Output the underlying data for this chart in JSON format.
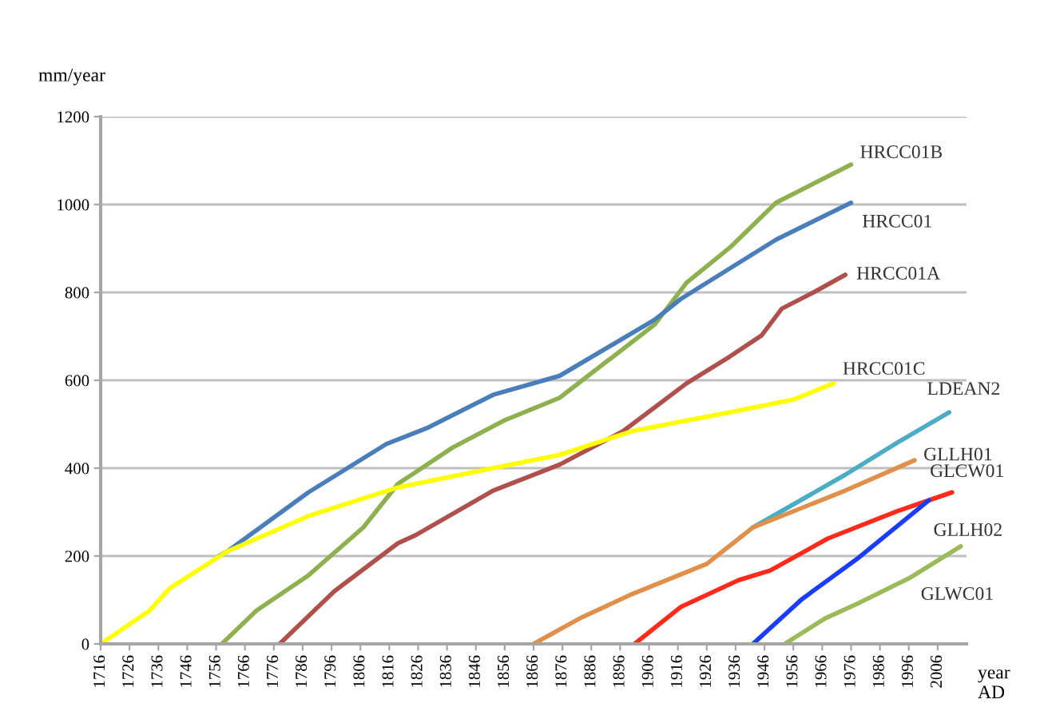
{
  "chart_data": {
    "type": "line",
    "ylabel": "mm/year",
    "xlabel": "year\nAD",
    "xlim": [
      1716,
      2016
    ],
    "xticks": [
      1716,
      1726,
      1736,
      1746,
      1756,
      1766,
      1776,
      1786,
      1796,
      1806,
      1816,
      1826,
      1836,
      1846,
      1856,
      1866,
      1876,
      1886,
      1896,
      1906,
      1916,
      1926,
      1936,
      1946,
      1956,
      1966,
      1976,
      1986,
      1996,
      2006
    ],
    "ylim": [
      0,
      1200
    ],
    "yticks": [
      0,
      200,
      400,
      600,
      800,
      1000,
      1200
    ],
    "grid": "y",
    "legend": false,
    "marker": "none",
    "line_style": "solid",
    "series": [
      {
        "name": "HRCC01B",
        "color": "#8fb04f",
        "x": [
          1758,
          1770,
          1788,
          1807,
          1819,
          1838,
          1856,
          1875,
          1908,
          1919,
          1934,
          1950,
          1976
        ],
        "values": [
          0,
          76,
          156,
          265,
          364,
          447,
          509,
          560,
          727,
          822,
          902,
          1004,
          1091
        ]
      },
      {
        "name": "HRCC01",
        "color": "#4a7ebb",
        "x": [
          1757,
          1760,
          1788,
          1815,
          1829,
          1852,
          1875,
          1908,
          1917,
          1950,
          1976
        ],
        "values": [
          200,
          211,
          345,
          455,
          491,
          567,
          610,
          738,
          785,
          920,
          1004
        ]
      },
      {
        "name": "HRCC01A",
        "color": "#b0504c",
        "x": [
          1778,
          1797,
          1819,
          1825,
          1852,
          1875,
          1897,
          1919,
          1934,
          1945,
          1952,
          1963,
          1974
        ],
        "values": [
          0,
          120,
          229,
          247,
          349,
          408,
          484,
          593,
          654,
          702,
          763,
          800,
          840
        ]
      },
      {
        "name": "HRCC01C",
        "color": "#ffff00",
        "x": [
          1716,
          1733,
          1740,
          1760,
          1788,
          1819,
          1852,
          1875,
          1900,
          1937,
          1956,
          1970
        ],
        "values": [
          0,
          76,
          127,
          211,
          291,
          356,
          400,
          430,
          484,
          531,
          556,
          593
        ]
      },
      {
        "name": "LDEAN2",
        "color": "#4bacc6",
        "x": [
          1942,
          1974,
          1992,
          2010
        ],
        "values": [
          265,
          385,
          458,
          527
        ]
      },
      {
        "name": "GLLH01",
        "color": "#e0904a",
        "x": [
          1866,
          1882,
          1900,
          1926,
          1942,
          1974,
          1998
        ],
        "values": [
          0,
          58,
          113,
          182,
          265,
          349,
          418
        ]
      },
      {
        "name": "GLCW01",
        "color": "#ff2a1a",
        "x": [
          1901,
          1917,
          1937,
          1948,
          1968,
          1992,
          2011
        ],
        "values": [
          0,
          84,
          145,
          167,
          240,
          302,
          345
        ]
      },
      {
        "name": "GLLH02",
        "color": "#1a3cff",
        "x": [
          1942,
          1959,
          1978,
          2003
        ],
        "values": [
          0,
          102,
          193,
          327
        ]
      },
      {
        "name": "GLWC01",
        "color": "#9bbb59",
        "x": [
          1953,
          1967,
          1978,
          1996,
          2014
        ],
        "values": [
          0,
          58,
          91,
          149,
          222
        ]
      }
    ]
  }
}
